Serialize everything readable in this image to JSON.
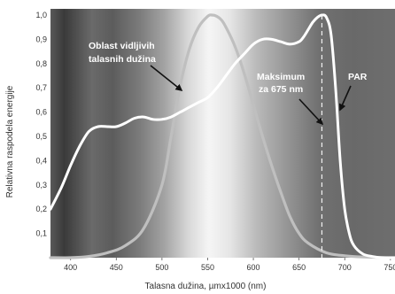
{
  "chart_data": {
    "type": "line",
    "xlabel": "Talasna dužina, µmx1000 (nm)",
    "ylabel": "Relativna raspodela energije",
    "xlim": [
      378,
      755
    ],
    "ylim": [
      0,
      1.0
    ],
    "x_ticks": [
      "400",
      "450",
      "500",
      "550",
      "600",
      "650",
      "700",
      "750"
    ],
    "y_ticks": [
      "0,1",
      "0,2",
      "0,3",
      "0,4",
      "0,5",
      "0,6",
      "0,7",
      "0,8",
      "0,9",
      "1,0"
    ],
    "grid": false,
    "background": "visible spectrum gradient",
    "series": [
      {
        "id": "visible",
        "color": "#bfbfbf",
        "x": [
          378,
          400,
          420,
          440,
          460,
          480,
          500,
          510,
          520,
          530,
          540,
          550,
          555,
          560,
          565,
          570,
          580,
          590,
          600,
          610,
          620,
          630,
          640,
          650,
          660,
          680,
          700,
          720,
          740,
          755
        ],
        "y": [
          0.0,
          0.0,
          0.005,
          0.02,
          0.05,
          0.12,
          0.3,
          0.5,
          0.71,
          0.86,
          0.95,
          0.995,
          1.0,
          0.995,
          0.98,
          0.95,
          0.87,
          0.76,
          0.63,
          0.5,
          0.38,
          0.27,
          0.17,
          0.1,
          0.06,
          0.02,
          0.008,
          0.003,
          0.001,
          0.0
        ]
      },
      {
        "id": "par",
        "color": "#ffffff",
        "x": [
          378,
          390,
          400,
          410,
          420,
          430,
          440,
          450,
          460,
          470,
          480,
          490,
          500,
          510,
          520,
          530,
          540,
          550,
          560,
          570,
          580,
          590,
          600,
          610,
          620,
          630,
          640,
          650,
          655,
          660,
          665,
          670,
          675,
          680,
          685,
          690,
          695,
          700,
          705,
          710,
          720,
          730,
          740,
          755
        ],
        "y": [
          0.2,
          0.29,
          0.38,
          0.46,
          0.52,
          0.54,
          0.54,
          0.54,
          0.555,
          0.575,
          0.58,
          0.57,
          0.57,
          0.58,
          0.6,
          0.62,
          0.64,
          0.66,
          0.7,
          0.75,
          0.8,
          0.84,
          0.88,
          0.9,
          0.9,
          0.89,
          0.88,
          0.89,
          0.91,
          0.94,
          0.97,
          0.99,
          1.0,
          0.99,
          0.92,
          0.7,
          0.4,
          0.2,
          0.1,
          0.05,
          0.015,
          0.005,
          0.0,
          0.0
        ]
      }
    ],
    "marker": {
      "x": 675,
      "style": "dashed"
    },
    "annotations": {
      "visible_label": [
        "Oblast vidljivih",
        "talasnih dužina"
      ],
      "max_label": [
        "Maksimum",
        "za 675 nm"
      ],
      "par_label": "PAR"
    }
  }
}
